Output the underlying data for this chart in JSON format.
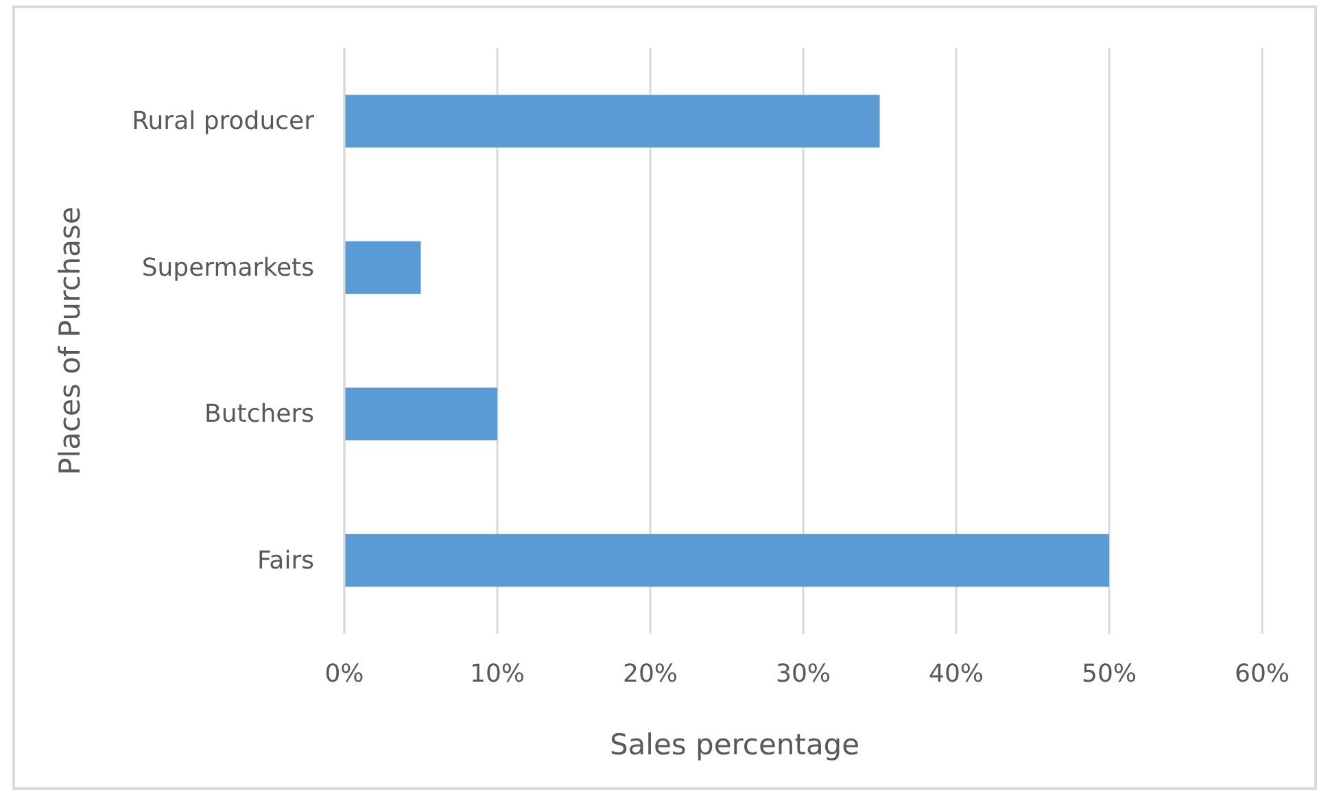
{
  "chart_data": {
    "type": "bar",
    "orientation": "horizontal",
    "xlabel": "Sales percentage",
    "ylabel": "Places of Purchase",
    "categories": [
      "Rural producer",
      "Supermarkets",
      "Butchers",
      "Fairs"
    ],
    "values": [
      35,
      5,
      10,
      50
    ],
    "color": "#5b9bd5",
    "xlim": [
      0,
      60
    ],
    "xticks": [
      {
        "value": 0,
        "label": "0%"
      },
      {
        "value": 10,
        "label": "10%"
      },
      {
        "value": 20,
        "label": "20%"
      },
      {
        "value": 30,
        "label": "30%"
      },
      {
        "value": 40,
        "label": "40%"
      },
      {
        "value": 50,
        "label": "50%"
      },
      {
        "value": 60,
        "label": "60%"
      }
    ],
    "grid": "x"
  }
}
